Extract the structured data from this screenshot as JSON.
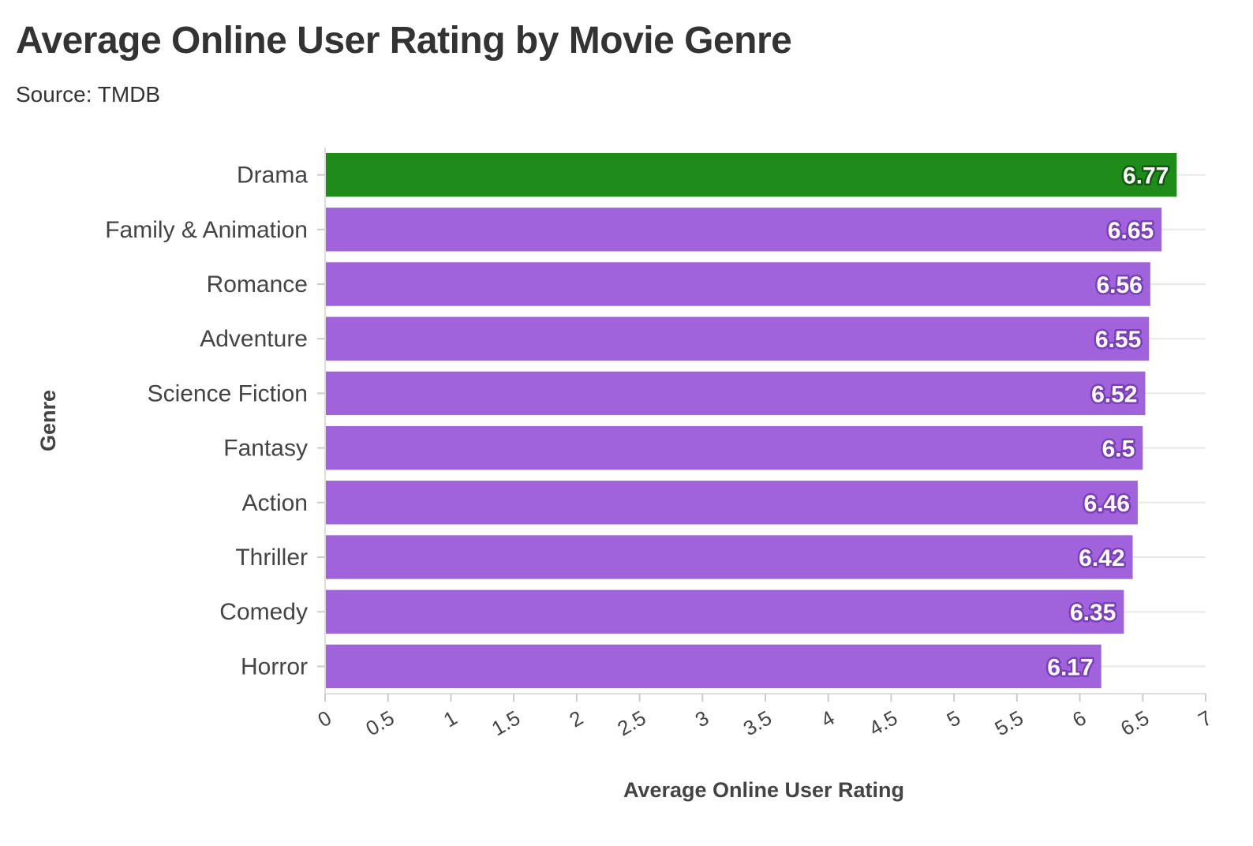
{
  "chart_data": {
    "type": "bar",
    "orientation": "horizontal",
    "title": "Average Online User Rating by Movie Genre",
    "subtitle": "Source: TMDB",
    "xlabel": "Average Online User Rating",
    "ylabel": "Genre",
    "categories": [
      "Drama",
      "Family & Animation",
      "Romance",
      "Adventure",
      "Science Fiction",
      "Fantasy",
      "Action",
      "Thriller",
      "Comedy",
      "Horror"
    ],
    "values": [
      6.77,
      6.65,
      6.56,
      6.55,
      6.52,
      6.5,
      6.46,
      6.42,
      6.35,
      6.17
    ],
    "value_labels": [
      "6.77",
      "6.65",
      "6.56",
      "6.55",
      "6.52",
      "6.5",
      "6.46",
      "6.42",
      "6.35",
      "6.17"
    ],
    "highlight_category": "Drama",
    "xlim": [
      0,
      7
    ],
    "x_ticks": [
      "0",
      "0.5",
      "1",
      "1.5",
      "2",
      "2.5",
      "3",
      "3.5",
      "4",
      "4.5",
      "5",
      "5.5",
      "6",
      "6.5",
      "7"
    ],
    "grid": true,
    "legend": "none",
    "colors": {
      "highlight": "#1f8b1a",
      "default": "#a063dc",
      "highlight_label_outline": "#0f5a0c",
      "default_label_outline": "#7a3fb8"
    }
  }
}
